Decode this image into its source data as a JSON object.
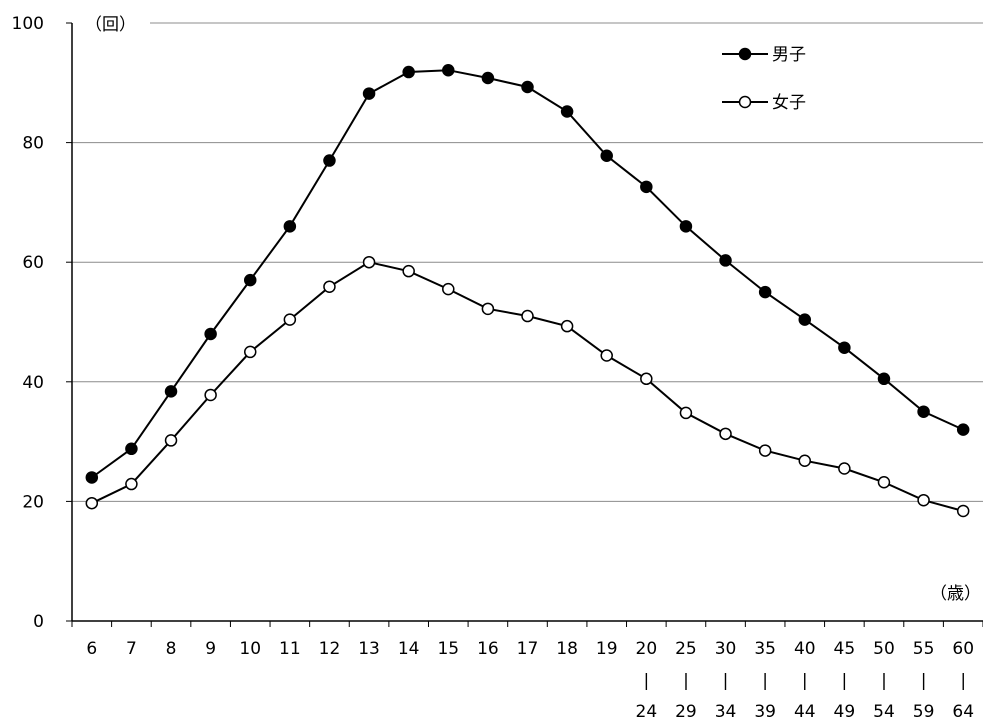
{
  "chart_data": {
    "type": "line",
    "title": "",
    "xlabel": "",
    "ylabel": "",
    "y_unit_label": "（回）",
    "x_unit_label": "（歳）",
    "ylim": [
      0,
      100
    ],
    "y_ticks": [
      "0",
      "20",
      "40",
      "60",
      "80",
      "100"
    ],
    "grid": "horizontal",
    "legend_position": "top-right",
    "categories": [
      {
        "top": "6"
      },
      {
        "top": "7"
      },
      {
        "top": "8"
      },
      {
        "top": "9"
      },
      {
        "top": "10"
      },
      {
        "top": "11"
      },
      {
        "top": "12"
      },
      {
        "top": "13"
      },
      {
        "top": "14"
      },
      {
        "top": "15"
      },
      {
        "top": "16"
      },
      {
        "top": "17"
      },
      {
        "top": "18"
      },
      {
        "top": "19"
      },
      {
        "top": "20",
        "sep": "|",
        "bottom": "24"
      },
      {
        "top": "25",
        "sep": "|",
        "bottom": "29"
      },
      {
        "top": "30",
        "sep": "|",
        "bottom": "34"
      },
      {
        "top": "35",
        "sep": "|",
        "bottom": "39"
      },
      {
        "top": "40",
        "sep": "|",
        "bottom": "44"
      },
      {
        "top": "45",
        "sep": "|",
        "bottom": "49"
      },
      {
        "top": "50",
        "sep": "|",
        "bottom": "54"
      },
      {
        "top": "55",
        "sep": "|",
        "bottom": "59"
      },
      {
        "top": "60",
        "sep": "|",
        "bottom": "64"
      }
    ],
    "series": [
      {
        "name": "男子",
        "marker": "filled",
        "color": "#000000",
        "values": [
          24.0,
          28.8,
          38.4,
          48.0,
          57.0,
          66.0,
          77.0,
          88.2,
          91.8,
          92.1,
          90.8,
          89.3,
          85.2,
          77.8,
          72.6,
          66.0,
          60.3,
          55.0,
          50.4,
          45.7,
          40.5,
          35.0,
          32.0
        ]
      },
      {
        "name": "女子",
        "marker": "open",
        "color": "#000000",
        "values": [
          19.7,
          22.9,
          30.2,
          37.8,
          45.0,
          50.4,
          55.9,
          60.0,
          58.5,
          55.5,
          52.2,
          51.0,
          49.3,
          44.4,
          40.5,
          34.8,
          31.3,
          28.5,
          26.8,
          25.5,
          23.2,
          20.2,
          18.4
        ]
      }
    ]
  }
}
